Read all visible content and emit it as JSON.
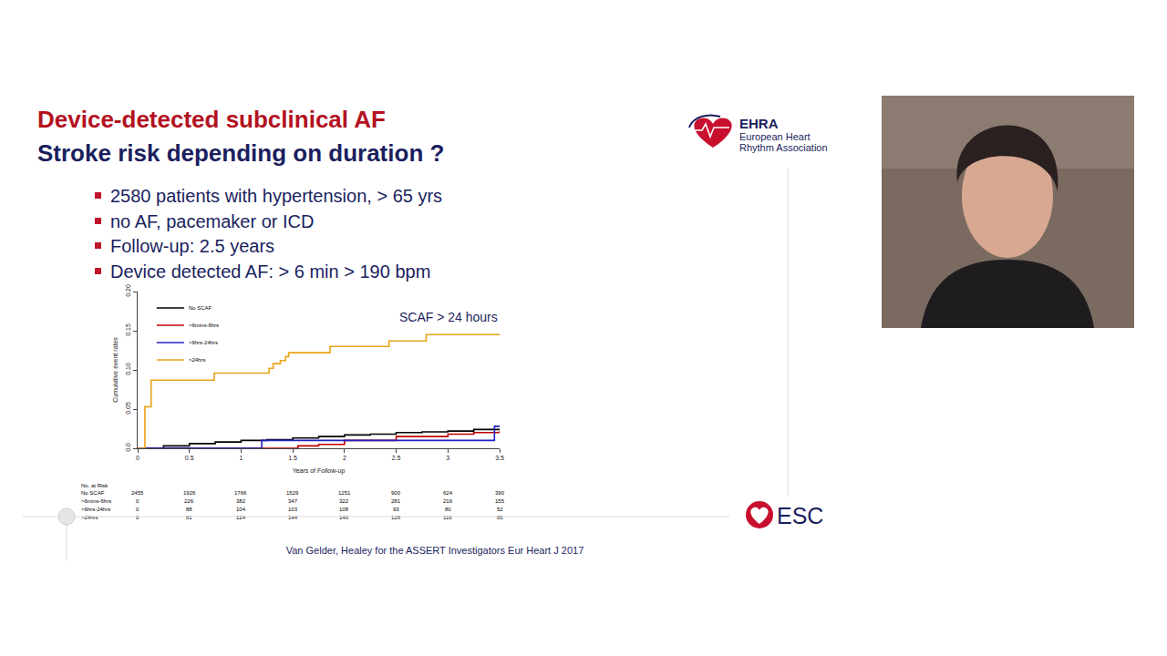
{
  "slide": {
    "title": [
      "Device-detected subclinical AF",
      "Stroke risk depending on duration ?"
    ],
    "bullets": [
      "2580 patients with hypertension, > 65 yrs",
      "no AF, pacemaker or ICD",
      "Follow-up: 2.5 years",
      "Device detected AF: > 6 min > 190 bpm"
    ],
    "logos": {
      "ehra": [
        "EHRA",
        "European Heart",
        "Rhythm Association"
      ],
      "esc": "ESC"
    },
    "citation": "Van Gelder, Healey for the ASSERT Investigators Eur Heart J 2017"
  },
  "chart_data": {
    "type": "line",
    "line_style": "step",
    "x_label": "Years of Follow-up",
    "y_label": "Cumulative event rates",
    "xlim": [
      0,
      3.5
    ],
    "ylim": [
      0,
      0.2
    ],
    "xticks": [
      0,
      0.5,
      1,
      1.5,
      2,
      2.5,
      3,
      3.5
    ],
    "yticks": [
      {
        "value": 0,
        "label": "0.0"
      },
      0.05,
      {
        "value": 0.1,
        "label": "0.10"
      },
      0.15,
      {
        "value": 0.2,
        "label": "0.20"
      }
    ],
    "grid": false,
    "legend": "upper left",
    "annotations": [
      {
        "text": "SCAF > 24 hours",
        "x": 3.5,
        "y": 0.156
      }
    ],
    "series": [
      {
        "name": "No SCAF",
        "color": "#000000",
        "x": [
          0,
          0.25,
          0.5,
          0.75,
          1,
          1.25,
          1.5,
          1.75,
          2,
          2.25,
          2.5,
          2.75,
          3,
          3.25,
          3.5
        ],
        "values": [
          0,
          0.003,
          0.006,
          0.008,
          0.01,
          0.011,
          0.013,
          0.015,
          0.017,
          0.018,
          0.02,
          0.021,
          0.022,
          0.024,
          0.025
        ]
      },
      {
        "name": ">6mins-6hrs",
        "color": "#c00000",
        "x": [
          0,
          1.55,
          1.75,
          2,
          2.5,
          3,
          3.25,
          3.5
        ],
        "values": [
          0,
          0.003,
          0.005,
          0.01,
          0.015,
          0.018,
          0.02,
          0.022
        ]
      },
      {
        "name": ">6hrs-24hrs",
        "color": "#2020c0",
        "x": [
          0,
          1.2,
          3.45,
          3.5
        ],
        "values": [
          0,
          0.01,
          0.028,
          0.028
        ]
      },
      {
        "name": ">24hrs",
        "color": "#e8a317",
        "x": [
          0,
          0.07,
          0.13,
          0.74,
          1.27,
          1.31,
          1.38,
          1.43,
          1.46,
          1.86,
          2.43,
          2.79,
          3.5
        ],
        "values": [
          0,
          0.053,
          0.087,
          0.096,
          0.102,
          0.108,
          0.112,
          0.117,
          0.122,
          0.13,
          0.137,
          0.145,
          0.146
        ]
      }
    ],
    "risk_table": {
      "title": "No. at Risk",
      "x": [
        0,
        0.5,
        1,
        1.5,
        2,
        2.5,
        3,
        3.5
      ],
      "rows": [
        {
          "name": "No SCAF",
          "values": [
            2455,
            1926,
            1766,
            1529,
            1251,
            900,
            624,
            390
          ]
        },
        {
          "name": ">6mins-6hrs",
          "values": [
            0,
            226,
            382,
            347,
            322,
            281,
            216,
            155
          ]
        },
        {
          "name": ">6hrs-24hrs",
          "values": [
            0,
            88,
            104,
            103,
            108,
            93,
            80,
            52
          ]
        },
        {
          "name": ">24hrs",
          "values": [
            0,
            81,
            124,
            144,
            140,
            128,
            116,
            85
          ]
        }
      ]
    }
  }
}
